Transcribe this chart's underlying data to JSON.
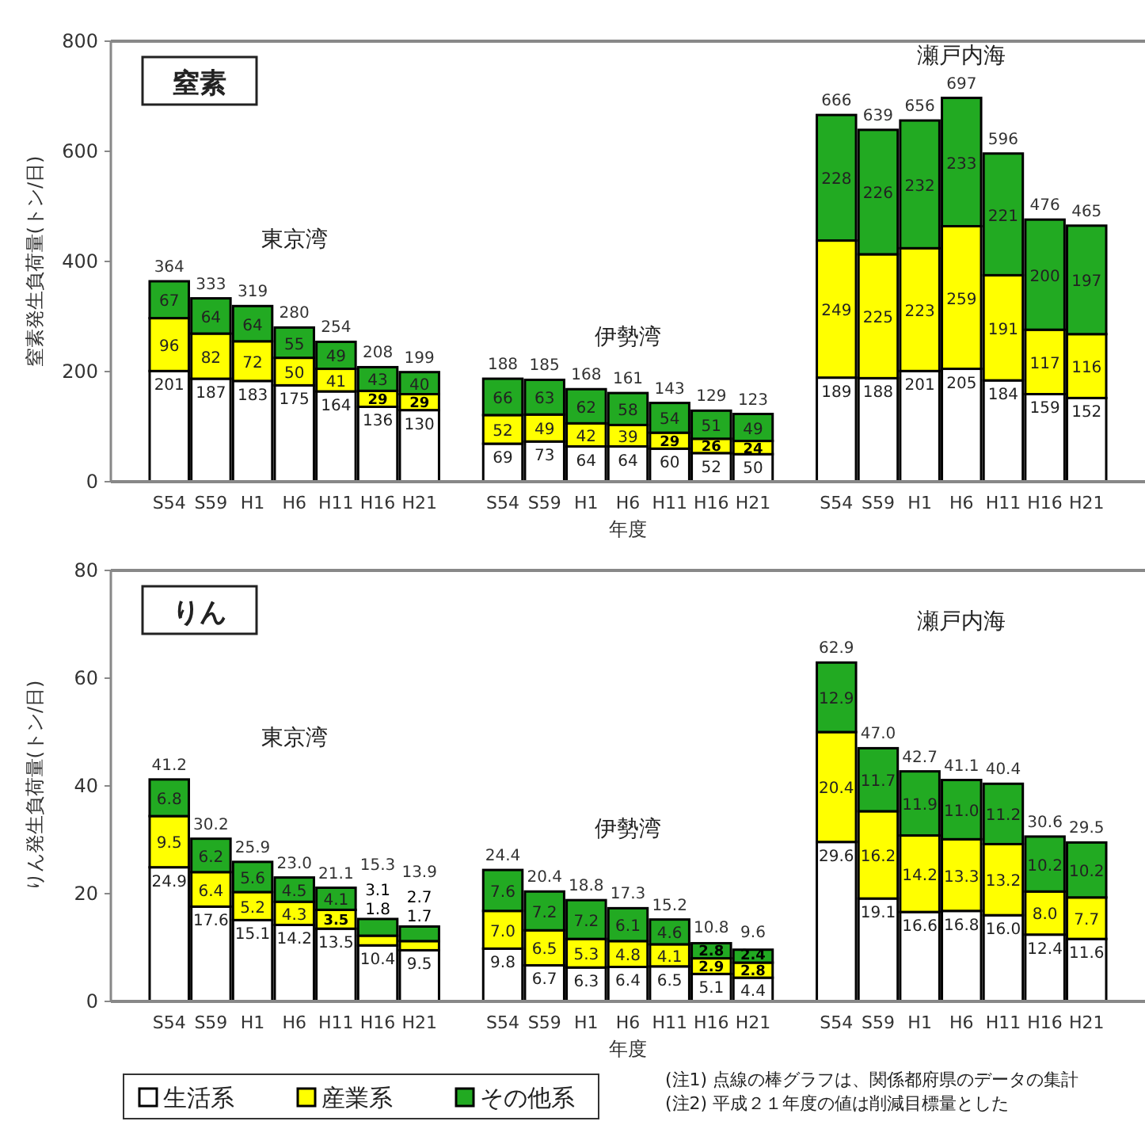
{
  "chart_data": [
    {
      "type": "bar",
      "title": "窒素",
      "xlabel": "年度",
      "ylabel": "窒素発生負荷量(トン/日)",
      "stacked": true,
      "categories": [
        "S54",
        "S59",
        "H1",
        "H6",
        "H11",
        "H16",
        "H21",
        null,
        "S54",
        "S59",
        "H1",
        "H6",
        "H11",
        "H16",
        "H21",
        null,
        "S54",
        "S59",
        "H1",
        "H6",
        "H11",
        "H16",
        "H21"
      ],
      "series": [
        {
          "color": "#ffffff",
          "values": [
            201,
            187,
            183,
            175,
            164,
            136,
            130,
            null,
            69,
            73,
            64,
            64,
            60,
            52,
            50,
            null,
            189,
            188,
            201,
            205,
            184,
            159,
            152
          ],
          "value_labels": [
            "201",
            "187",
            "183",
            "175",
            "164",
            "136",
            "130",
            null,
            "69",
            "73",
            "64",
            "64",
            "60",
            "52",
            "50",
            null,
            "189",
            "188",
            "201",
            "205",
            "184",
            "159",
            "152"
          ]
        },
        {
          "color": "#ffff00",
          "values": [
            96,
            82,
            72,
            50,
            41,
            29,
            29,
            null,
            52,
            49,
            42,
            39,
            29,
            26,
            24,
            null,
            249,
            225,
            223,
            259,
            191,
            117,
            116
          ],
          "value_labels": [
            "96",
            "82",
            "72",
            "50",
            "41",
            "29",
            "29",
            null,
            "52",
            "49",
            "42",
            "39",
            "29",
            "26",
            "24",
            null,
            "249",
            "225",
            "223",
            "259",
            "191",
            "117",
            "116"
          ]
        },
        {
          "color": "#22aa22",
          "values": [
            67,
            64,
            64,
            55,
            49,
            43,
            40,
            null,
            66,
            63,
            62,
            58,
            54,
            51,
            49,
            null,
            228,
            226,
            232,
            233,
            221,
            200,
            197
          ],
          "value_labels": [
            "67",
            "64",
            "64",
            "55",
            "49",
            "43",
            "40",
            null,
            "66",
            "63",
            "62",
            "58",
            "54",
            "51",
            "49",
            null,
            "228",
            "226",
            "232",
            "233",
            "221",
            "200",
            "197"
          ]
        }
      ],
      "totals": [
        "364",
        "333",
        "319",
        "280",
        "254",
        "208",
        "199",
        null,
        "188",
        "185",
        "168",
        "161",
        "143",
        "129",
        "123",
        null,
        "666",
        "639",
        "656",
        "697",
        "596",
        "476",
        "465"
      ],
      "ylim": [
        0,
        800
      ],
      "yticks": [
        0,
        200,
        400,
        600,
        800
      ],
      "grid": false,
      "annotations": [
        "東京湾",
        "伊勢湾",
        "瀬戸内海"
      ]
    },
    {
      "type": "bar",
      "title": "りん",
      "xlabel": "年度",
      "ylabel": "りん発生負荷量(トン/日)",
      "stacked": true,
      "categories": [
        "S54",
        "S59",
        "H1",
        "H6",
        "H11",
        "H16",
        "H21",
        null,
        "S54",
        "S59",
        "H1",
        "H6",
        "H11",
        "H16",
        "H21",
        null,
        "S54",
        "S59",
        "H1",
        "H6",
        "H11",
        "H16",
        "H21"
      ],
      "series": [
        {
          "name": "生活系",
          "color": "#ffffff",
          "values": [
            24.9,
            17.6,
            15.1,
            14.2,
            13.5,
            10.4,
            9.5,
            null,
            9.8,
            6.7,
            6.3,
            6.4,
            6.5,
            5.1,
            4.4,
            null,
            29.6,
            19.1,
            16.6,
            16.8,
            16.0,
            12.4,
            11.6
          ],
          "value_labels": [
            "24.9",
            "17.6",
            "15.1",
            "14.2",
            "13.5",
            "10.4",
            "9.5",
            null,
            "9.8",
            "6.7",
            "6.3",
            "6.4",
            "6.5",
            "5.1",
            "4.4",
            null,
            "29.6",
            "19.1",
            "16.6",
            "16.8",
            "16.0",
            "12.4",
            "11.6"
          ]
        },
        {
          "name": "産業系",
          "color": "#ffff00",
          "values": [
            9.5,
            6.4,
            5.2,
            4.3,
            3.5,
            1.8,
            1.7,
            null,
            7.0,
            6.5,
            5.3,
            4.8,
            4.1,
            2.9,
            2.8,
            null,
            20.4,
            16.2,
            14.2,
            13.3,
            13.2,
            8.0,
            7.7
          ],
          "value_labels": [
            "9.5",
            "6.4",
            "5.2",
            "4.3",
            "3.5",
            "1.8",
            "1.7",
            null,
            "7.0",
            "6.5",
            "5.3",
            "4.8",
            "4.1",
            "2.9",
            "2.8",
            null,
            "20.4",
            "16.2",
            "14.2",
            "13.3",
            "13.2",
            "8.0",
            "7.7"
          ]
        },
        {
          "name": "その他系",
          "color": "#22aa22",
          "values": [
            6.8,
            6.2,
            5.6,
            4.5,
            4.1,
            3.1,
            2.7,
            null,
            7.6,
            7.2,
            7.2,
            6.1,
            4.6,
            2.8,
            2.4,
            null,
            12.9,
            11.7,
            11.9,
            11.0,
            11.2,
            10.2,
            10.2
          ],
          "value_labels": [
            "6.8",
            "6.2",
            "5.6",
            "4.5",
            "4.1",
            "3.1",
            "2.7",
            null,
            "7.6",
            "7.2",
            "7.2",
            "6.1",
            "4.6",
            "2.8",
            "2.4",
            null,
            "12.9",
            "11.7",
            "11.9",
            "11.0",
            "11.2",
            "10.2",
            "10.2"
          ]
        }
      ],
      "totals": [
        "41.2",
        "30.2",
        "25.9",
        "23.0",
        "21.1",
        "15.3",
        "13.9",
        null,
        "24.4",
        "20.4",
        "18.8",
        "17.3",
        "15.2",
        "10.8",
        "9.6",
        null,
        "62.9",
        "47.0",
        "42.7",
        "41.1",
        "40.4",
        "30.6",
        "29.5"
      ],
      "ylim": [
        0,
        80
      ],
      "yticks": [
        0,
        20,
        40,
        60,
        80
      ],
      "grid": false,
      "legend": "bottom left",
      "annotations": [
        "東京湾",
        "伊勢湾",
        "瀬戸内海",
        "(注1) 点線の棒グラフは、関係都府県のデータの集計",
        "(注2) 平成２１年度の値は削減目標量とした"
      ]
    }
  ]
}
